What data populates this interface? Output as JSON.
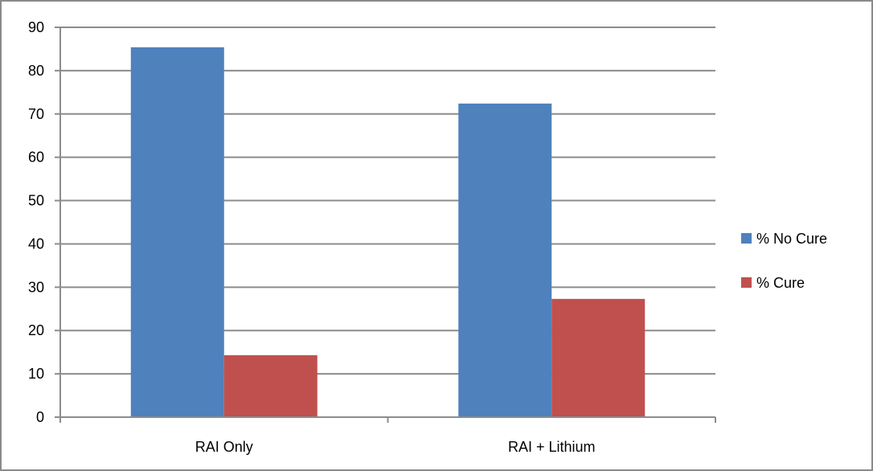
{
  "chart_data": {
    "type": "bar",
    "categories": [
      "RAI Only",
      "RAI + Lithium"
    ],
    "series": [
      {
        "name": "% No Cure",
        "values": [
          85.4,
          72.4
        ],
        "color": "#4f81bd"
      },
      {
        "name": "% Cure",
        "values": [
          14.3,
          27.3
        ],
        "color": "#c0504d"
      }
    ],
    "title": "",
    "xlabel": "",
    "ylabel": "",
    "ylim": [
      0,
      90
    ],
    "yticks": [
      "0",
      "10",
      "20",
      "30",
      "40",
      "50",
      "60",
      "70",
      "80",
      "90"
    ],
    "grid": true,
    "legend_position": "right"
  }
}
